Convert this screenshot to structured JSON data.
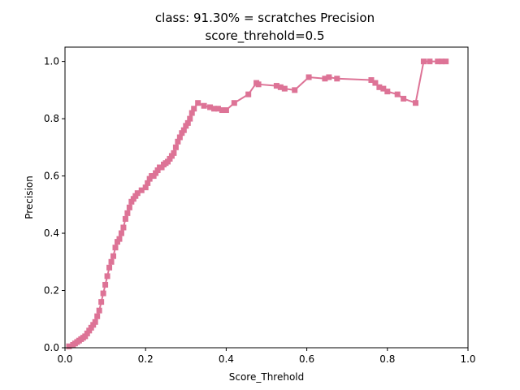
{
  "chart_data": {
    "type": "line",
    "title_line1": "class: 91.30% = scratches Precision",
    "title_line2": "score_threhold=0.5",
    "xlabel": "Score_Threhold",
    "ylabel": "Precision",
    "xlim": [
      0.0,
      1.0
    ],
    "ylim": [
      0.0,
      1.05
    ],
    "x_ticks": [
      "0.0",
      "0.2",
      "0.4",
      "0.6",
      "0.8",
      "1.0"
    ],
    "y_ticks": [
      "0.0",
      "0.2",
      "0.4",
      "0.6",
      "0.8",
      "1.0"
    ],
    "grid": false,
    "series_color": "#dd7396",
    "marker": "square",
    "x": [
      0.01,
      0.02,
      0.025,
      0.03,
      0.035,
      0.04,
      0.045,
      0.05,
      0.055,
      0.06,
      0.065,
      0.07,
      0.075,
      0.08,
      0.085,
      0.09,
      0.095,
      0.1,
      0.105,
      0.11,
      0.115,
      0.12,
      0.125,
      0.13,
      0.135,
      0.14,
      0.145,
      0.15,
      0.155,
      0.16,
      0.165,
      0.17,
      0.175,
      0.18,
      0.19,
      0.2,
      0.205,
      0.21,
      0.215,
      0.22,
      0.225,
      0.23,
      0.235,
      0.24,
      0.245,
      0.25,
      0.255,
      0.26,
      0.265,
      0.27,
      0.275,
      0.28,
      0.285,
      0.29,
      0.295,
      0.3,
      0.305,
      0.31,
      0.315,
      0.32,
      0.33,
      0.345,
      0.36,
      0.37,
      0.38,
      0.39,
      0.4,
      0.42,
      0.455,
      0.475,
      0.48,
      0.525,
      0.535,
      0.545,
      0.57,
      0.605,
      0.645,
      0.655,
      0.675,
      0.76,
      0.77,
      0.78,
      0.79,
      0.8,
      0.825,
      0.84,
      0.87,
      0.89,
      0.905,
      0.925,
      0.935,
      0.945
    ],
    "y": [
      0.005,
      0.01,
      0.015,
      0.02,
      0.025,
      0.03,
      0.035,
      0.04,
      0.05,
      0.06,
      0.07,
      0.08,
      0.09,
      0.11,
      0.13,
      0.16,
      0.19,
      0.22,
      0.25,
      0.28,
      0.3,
      0.32,
      0.35,
      0.37,
      0.38,
      0.4,
      0.42,
      0.45,
      0.47,
      0.49,
      0.51,
      0.52,
      0.53,
      0.54,
      0.55,
      0.56,
      0.575,
      0.59,
      0.6,
      0.6,
      0.61,
      0.62,
      0.63,
      0.63,
      0.64,
      0.645,
      0.65,
      0.66,
      0.67,
      0.68,
      0.7,
      0.72,
      0.735,
      0.75,
      0.76,
      0.775,
      0.785,
      0.8,
      0.82,
      0.835,
      0.855,
      0.845,
      0.84,
      0.835,
      0.835,
      0.83,
      0.83,
      0.855,
      0.885,
      0.925,
      0.92,
      0.915,
      0.91,
      0.905,
      0.9,
      0.945,
      0.94,
      0.945,
      0.94,
      0.935,
      0.925,
      0.91,
      0.905,
      0.895,
      0.885,
      0.87,
      0.855,
      1.0,
      1.0,
      1.0,
      1.0,
      1.0
    ]
  }
}
